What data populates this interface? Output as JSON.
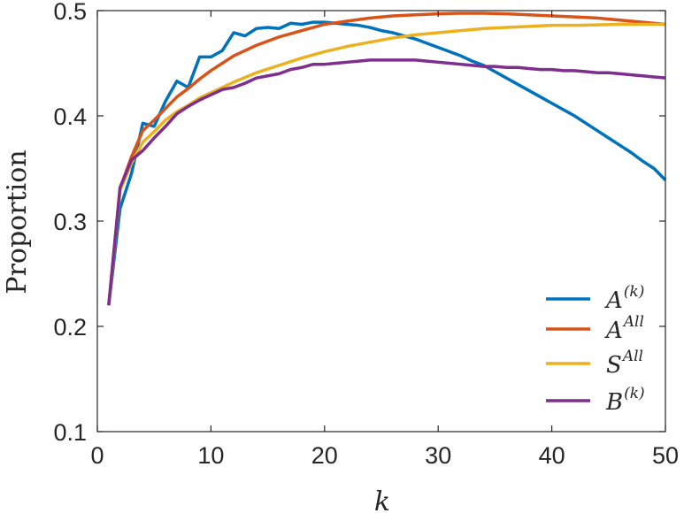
{
  "chart_data": {
    "type": "line",
    "xlabel": "k",
    "ylabel": "Proportion",
    "xlim": [
      0,
      50
    ],
    "ylim": [
      0.1,
      0.5
    ],
    "xticks": [
      "0",
      "10",
      "20",
      "30",
      "40",
      "50"
    ],
    "yticks": [
      "0.1",
      "0.2",
      "0.3",
      "0.4",
      "0.5"
    ],
    "grid": false,
    "legend_position": "bottom-right",
    "series": [
      {
        "name": "A^(k)",
        "legend_base": "A",
        "legend_sup": "(k)",
        "color": "#0072BD",
        "x": [
          1,
          2,
          3,
          4,
          5,
          6,
          7,
          8,
          9,
          10,
          11,
          12,
          13,
          14,
          15,
          16,
          17,
          18,
          19,
          20,
          21,
          22,
          23,
          24,
          25,
          26,
          27,
          28,
          29,
          30,
          31,
          32,
          33,
          34,
          35,
          36,
          37,
          38,
          39,
          40,
          41,
          42,
          43,
          44,
          45,
          46,
          47,
          48,
          49,
          50
        ],
        "values": [
          0.22,
          0.312,
          0.345,
          0.393,
          0.39,
          0.414,
          0.433,
          0.427,
          0.456,
          0.456,
          0.462,
          0.479,
          0.476,
          0.483,
          0.484,
          0.483,
          0.488,
          0.487,
          0.489,
          0.489,
          0.488,
          0.487,
          0.486,
          0.484,
          0.481,
          0.479,
          0.476,
          0.473,
          0.469,
          0.465,
          0.461,
          0.457,
          0.452,
          0.448,
          0.442,
          0.436,
          0.43,
          0.424,
          0.418,
          0.412,
          0.406,
          0.4,
          0.393,
          0.386,
          0.379,
          0.372,
          0.365,
          0.357,
          0.35,
          0.339
        ]
      },
      {
        "name": "A^All",
        "legend_base": "A",
        "legend_sup": "All",
        "color": "#D95319",
        "x": [
          1,
          2,
          3,
          4,
          5,
          6,
          7,
          8,
          9,
          10,
          11,
          12,
          13,
          14,
          15,
          16,
          17,
          18,
          19,
          20,
          22,
          24,
          26,
          28,
          30,
          32,
          34,
          36,
          38,
          40,
          42,
          44,
          46,
          48,
          50
        ],
        "values": [
          0.22,
          0.331,
          0.361,
          0.386,
          0.396,
          0.407,
          0.418,
          0.426,
          0.435,
          0.443,
          0.45,
          0.457,
          0.462,
          0.467,
          0.471,
          0.475,
          0.478,
          0.481,
          0.484,
          0.487,
          0.49,
          0.493,
          0.495,
          0.496,
          0.497,
          0.4975,
          0.4975,
          0.497,
          0.496,
          0.495,
          0.494,
          0.493,
          0.491,
          0.489,
          0.487
        ]
      },
      {
        "name": "S^All",
        "legend_base": "S",
        "legend_sup": "All",
        "color": "#EDB120",
        "x": [
          1,
          2,
          3,
          4,
          5,
          6,
          7,
          8,
          9,
          10,
          12,
          14,
          16,
          18,
          20,
          22,
          24,
          26,
          28,
          30,
          32,
          34,
          36,
          38,
          40,
          42,
          44,
          46,
          48,
          50
        ],
        "values": [
          0.22,
          0.329,
          0.355,
          0.375,
          0.385,
          0.396,
          0.404,
          0.41,
          0.417,
          0.422,
          0.432,
          0.441,
          0.448,
          0.455,
          0.461,
          0.466,
          0.47,
          0.474,
          0.477,
          0.479,
          0.481,
          0.483,
          0.484,
          0.485,
          0.486,
          0.486,
          0.4865,
          0.487,
          0.487,
          0.487
        ]
      },
      {
        "name": "B^(k)",
        "legend_base": "B",
        "legend_sup": "(k)",
        "color": "#7E2F8E",
        "x": [
          1,
          2,
          3,
          4,
          5,
          6,
          7,
          8,
          9,
          10,
          11,
          12,
          13,
          14,
          15,
          16,
          17,
          18,
          19,
          20,
          21,
          22,
          23,
          24,
          25,
          26,
          27,
          28,
          29,
          30,
          31,
          32,
          33,
          34,
          35,
          36,
          37,
          38,
          39,
          40,
          41,
          42,
          43,
          44,
          45,
          46,
          47,
          48,
          49,
          50
        ],
        "values": [
          0.22,
          0.332,
          0.358,
          0.367,
          0.379,
          0.39,
          0.402,
          0.409,
          0.415,
          0.42,
          0.425,
          0.427,
          0.431,
          0.436,
          0.438,
          0.44,
          0.444,
          0.446,
          0.449,
          0.449,
          0.45,
          0.451,
          0.452,
          0.453,
          0.453,
          0.453,
          0.453,
          0.453,
          0.452,
          0.451,
          0.45,
          0.449,
          0.448,
          0.447,
          0.447,
          0.446,
          0.446,
          0.445,
          0.444,
          0.444,
          0.443,
          0.443,
          0.442,
          0.441,
          0.441,
          0.44,
          0.439,
          0.438,
          0.437,
          0.436
        ]
      }
    ]
  }
}
